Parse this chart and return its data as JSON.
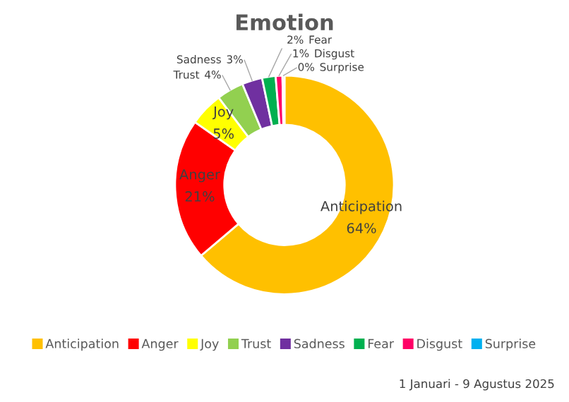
{
  "chart_data": {
    "type": "donut",
    "title": "Emotion",
    "categories": [
      "Anticipation",
      "Anger",
      "Joy",
      "Trust",
      "Sadness",
      "Fear",
      "Disgust",
      "Surprise"
    ],
    "values": [
      64,
      21,
      5,
      4,
      3,
      2,
      1,
      0.3
    ],
    "colors": [
      "#ffc000",
      "#ff0000",
      "#ffff00",
      "#92d050",
      "#7030a0",
      "#00b050",
      "#ff0066",
      "#00b0f0"
    ],
    "value_labels": [
      "64%",
      "21%",
      "5%",
      "4%",
      "3%",
      "2%",
      "1%",
      "0%"
    ],
    "legend": "bottom",
    "annotations": [
      "1 Januari - 9 Agustus 2025"
    ]
  }
}
